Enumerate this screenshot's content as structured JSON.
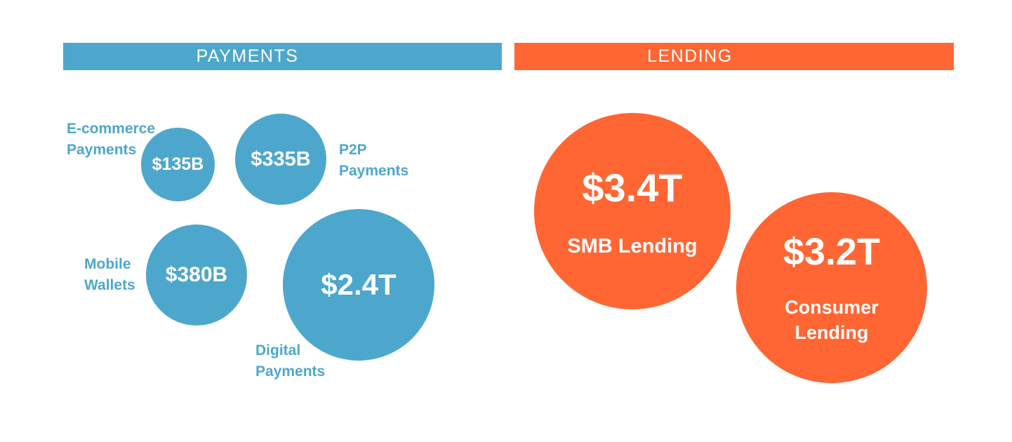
{
  "page": {
    "background": "#ffffff"
  },
  "colors": {
    "payments_blue": "#4DA7CC",
    "lending_orange": "#FF6633",
    "bubble_text": "#FFFFFF"
  },
  "payments": {
    "header": "PAYMENTS",
    "bubbles": [
      {
        "id": "ecommerce-payments",
        "value": "$135B",
        "label_lines": [
          "E-commerce",
          "Payments"
        ]
      },
      {
        "id": "p2p-payments",
        "value": "$335B",
        "label_lines": [
          "P2P",
          "Payments"
        ]
      },
      {
        "id": "mobile-wallets",
        "value": "$380B",
        "label_lines": [
          "Mobile",
          "Wallets"
        ]
      },
      {
        "id": "digital-payments",
        "value": "$2.4T",
        "label_lines": [
          "Digital",
          "Payments"
        ]
      }
    ]
  },
  "lending": {
    "header": "LENDING",
    "bubbles": [
      {
        "id": "smb-lending",
        "value": "$3.4T",
        "label_line1": "SMB Lending"
      },
      {
        "id": "consumer-lending",
        "value": "$3.2T",
        "label_line1": "Consumer",
        "label_line2": "Lending"
      }
    ]
  },
  "chart_data": {
    "type": "scatter",
    "subtype": "bubble-market-size-comparison",
    "title": "",
    "legend_position": "none",
    "grid": false,
    "groups": [
      {
        "name": "PAYMENTS",
        "color": "#4DA7CC",
        "points": [
          {
            "label": "E-commerce Payments",
            "display_value": "$135B",
            "value_usd_billions": 135
          },
          {
            "label": "P2P Payments",
            "display_value": "$335B",
            "value_usd_billions": 335
          },
          {
            "label": "Mobile Wallets",
            "display_value": "$380B",
            "value_usd_billions": 380
          },
          {
            "label": "Digital Payments",
            "display_value": "$2.4T",
            "value_usd_billions": 2400
          }
        ]
      },
      {
        "name": "LENDING",
        "color": "#FF6633",
        "points": [
          {
            "label": "SMB Lending",
            "display_value": "$3.4T",
            "value_usd_billions": 3400
          },
          {
            "label": "Consumer Lending",
            "display_value": "$3.2T",
            "value_usd_billions": 3200
          }
        ]
      }
    ]
  }
}
